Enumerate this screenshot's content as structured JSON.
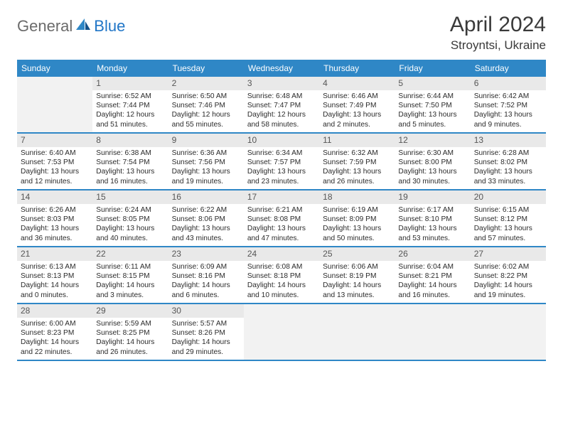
{
  "logo": {
    "text_gray": "General",
    "text_blue": "Blue"
  },
  "title": "April 2024",
  "subtitle": "Stroyntsi, Ukraine",
  "colors": {
    "header_bg": "#2f87c6",
    "header_text": "#ffffff",
    "daynum_bg": "#e9e9e9",
    "daynum_text": "#565656",
    "row_border": "#2f87c6",
    "empty_bg": "#f2f2f2",
    "body_text": "#2b2b2b"
  },
  "day_names": [
    "Sunday",
    "Monday",
    "Tuesday",
    "Wednesday",
    "Thursday",
    "Friday",
    "Saturday"
  ],
  "first_weekday_index": 1,
  "days": [
    {
      "n": 1,
      "sunrise": "6:52 AM",
      "sunset": "7:44 PM",
      "daylight": "12 hours and 51 minutes."
    },
    {
      "n": 2,
      "sunrise": "6:50 AM",
      "sunset": "7:46 PM",
      "daylight": "12 hours and 55 minutes."
    },
    {
      "n": 3,
      "sunrise": "6:48 AM",
      "sunset": "7:47 PM",
      "daylight": "12 hours and 58 minutes."
    },
    {
      "n": 4,
      "sunrise": "6:46 AM",
      "sunset": "7:49 PM",
      "daylight": "13 hours and 2 minutes."
    },
    {
      "n": 5,
      "sunrise": "6:44 AM",
      "sunset": "7:50 PM",
      "daylight": "13 hours and 5 minutes."
    },
    {
      "n": 6,
      "sunrise": "6:42 AM",
      "sunset": "7:52 PM",
      "daylight": "13 hours and 9 minutes."
    },
    {
      "n": 7,
      "sunrise": "6:40 AM",
      "sunset": "7:53 PM",
      "daylight": "13 hours and 12 minutes."
    },
    {
      "n": 8,
      "sunrise": "6:38 AM",
      "sunset": "7:54 PM",
      "daylight": "13 hours and 16 minutes."
    },
    {
      "n": 9,
      "sunrise": "6:36 AM",
      "sunset": "7:56 PM",
      "daylight": "13 hours and 19 minutes."
    },
    {
      "n": 10,
      "sunrise": "6:34 AM",
      "sunset": "7:57 PM",
      "daylight": "13 hours and 23 minutes."
    },
    {
      "n": 11,
      "sunrise": "6:32 AM",
      "sunset": "7:59 PM",
      "daylight": "13 hours and 26 minutes."
    },
    {
      "n": 12,
      "sunrise": "6:30 AM",
      "sunset": "8:00 PM",
      "daylight": "13 hours and 30 minutes."
    },
    {
      "n": 13,
      "sunrise": "6:28 AM",
      "sunset": "8:02 PM",
      "daylight": "13 hours and 33 minutes."
    },
    {
      "n": 14,
      "sunrise": "6:26 AM",
      "sunset": "8:03 PM",
      "daylight": "13 hours and 36 minutes."
    },
    {
      "n": 15,
      "sunrise": "6:24 AM",
      "sunset": "8:05 PM",
      "daylight": "13 hours and 40 minutes."
    },
    {
      "n": 16,
      "sunrise": "6:22 AM",
      "sunset": "8:06 PM",
      "daylight": "13 hours and 43 minutes."
    },
    {
      "n": 17,
      "sunrise": "6:21 AM",
      "sunset": "8:08 PM",
      "daylight": "13 hours and 47 minutes."
    },
    {
      "n": 18,
      "sunrise": "6:19 AM",
      "sunset": "8:09 PM",
      "daylight": "13 hours and 50 minutes."
    },
    {
      "n": 19,
      "sunrise": "6:17 AM",
      "sunset": "8:10 PM",
      "daylight": "13 hours and 53 minutes."
    },
    {
      "n": 20,
      "sunrise": "6:15 AM",
      "sunset": "8:12 PM",
      "daylight": "13 hours and 57 minutes."
    },
    {
      "n": 21,
      "sunrise": "6:13 AM",
      "sunset": "8:13 PM",
      "daylight": "14 hours and 0 minutes."
    },
    {
      "n": 22,
      "sunrise": "6:11 AM",
      "sunset": "8:15 PM",
      "daylight": "14 hours and 3 minutes."
    },
    {
      "n": 23,
      "sunrise": "6:09 AM",
      "sunset": "8:16 PM",
      "daylight": "14 hours and 6 minutes."
    },
    {
      "n": 24,
      "sunrise": "6:08 AM",
      "sunset": "8:18 PM",
      "daylight": "14 hours and 10 minutes."
    },
    {
      "n": 25,
      "sunrise": "6:06 AM",
      "sunset": "8:19 PM",
      "daylight": "14 hours and 13 minutes."
    },
    {
      "n": 26,
      "sunrise": "6:04 AM",
      "sunset": "8:21 PM",
      "daylight": "14 hours and 16 minutes."
    },
    {
      "n": 27,
      "sunrise": "6:02 AM",
      "sunset": "8:22 PM",
      "daylight": "14 hours and 19 minutes."
    },
    {
      "n": 28,
      "sunrise": "6:00 AM",
      "sunset": "8:23 PM",
      "daylight": "14 hours and 22 minutes."
    },
    {
      "n": 29,
      "sunrise": "5:59 AM",
      "sunset": "8:25 PM",
      "daylight": "14 hours and 26 minutes."
    },
    {
      "n": 30,
      "sunrise": "5:57 AM",
      "sunset": "8:26 PM",
      "daylight": "14 hours and 29 minutes."
    }
  ],
  "labels": {
    "sunrise": "Sunrise:",
    "sunset": "Sunset:",
    "daylight": "Daylight:"
  }
}
